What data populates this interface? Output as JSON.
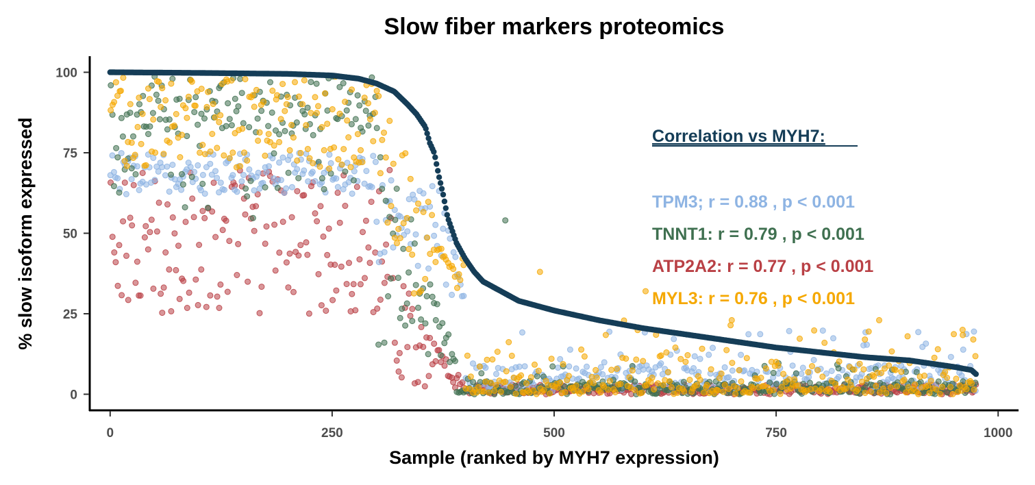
{
  "chart_data": {
    "type": "scatter",
    "title": "Slow fiber markers proteomics",
    "xlabel": "Sample (ranked by MYH7 expression)",
    "ylabel": "% slow isoform expressed",
    "xlim": [
      -23,
      1023
    ],
    "ylim": [
      -5,
      105
    ],
    "x_ticks": [
      0,
      250,
      500,
      750,
      1000
    ],
    "x_tick_labels": [
      "0",
      "250",
      "500",
      "750",
      "1000"
    ],
    "y_ticks": [
      0,
      25,
      50,
      75,
      100
    ],
    "y_tick_labels": [
      "0",
      "25",
      "50",
      "75",
      "100"
    ],
    "grid": false,
    "n_samples": 976,
    "reference_series": {
      "name": "MYH7",
      "color": "#153D57",
      "curve_knots": [
        [
          0,
          100
        ],
        [
          100,
          99.8
        ],
        [
          200,
          99.5
        ],
        [
          250,
          99
        ],
        [
          280,
          98
        ],
        [
          300,
          96.5
        ],
        [
          320,
          94
        ],
        [
          335,
          90
        ],
        [
          345,
          87
        ],
        [
          355,
          83
        ],
        [
          360,
          78
        ],
        [
          365,
          75
        ],
        [
          370,
          68
        ],
        [
          375,
          62
        ],
        [
          380,
          55
        ],
        [
          390,
          47
        ],
        [
          400,
          42
        ],
        [
          410,
          38
        ],
        [
          420,
          35
        ],
        [
          440,
          32
        ],
        [
          460,
          29
        ],
        [
          500,
          26
        ],
        [
          550,
          23
        ],
        [
          600,
          20.5
        ],
        [
          650,
          18.5
        ],
        [
          700,
          16.5
        ],
        [
          750,
          14.5
        ],
        [
          800,
          13
        ],
        [
          850,
          11.5
        ],
        [
          900,
          10.5
        ],
        [
          950,
          8.5
        ],
        [
          970,
          7.5
        ],
        [
          976,
          6
        ]
      ]
    },
    "series": [
      {
        "name": "TPM3",
        "color": "#8EB4E3",
        "r": "0.88",
        "p": "< 0.001",
        "early_level": [
          62,
          75
        ],
        "late_level": [
          0.5,
          10
        ]
      },
      {
        "name": "TNNT1",
        "color": "#3F7050",
        "r": "0.79",
        "p": "< 0.001",
        "early_level": [
          60,
          99
        ],
        "late_level": [
          0,
          5
        ]
      },
      {
        "name": "ATP2A2",
        "color": "#B94045",
        "r": "0.77",
        "p": "< 0.001",
        "early_level": [
          25,
          70
        ],
        "late_level": [
          0,
          3
        ]
      },
      {
        "name": "MYL3",
        "color": "#F5A800",
        "r": "0.76",
        "p": "< 0.001",
        "early_level": [
          70,
          99
        ],
        "late_level": [
          0,
          27
        ]
      }
    ],
    "annotation": {
      "heading": "Correlation vs MYH7:",
      "heading_color": "#153D57",
      "lines": [
        "TPM3; r = 0.88 , p < 0.001",
        "TNNT1: r = 0.79 , p < 0.001",
        "ATP2A2: r = 0.77 , p < 0.001",
        "MYL3: r = 0.76 , p < 0.001"
      ]
    }
  }
}
